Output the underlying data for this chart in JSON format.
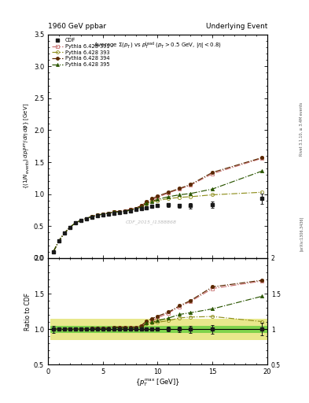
{
  "title_left": "1960 GeV ppbar",
  "title_right": "Underlying Event",
  "plot_title": "Average $\\Sigma(p_T)$ vs $p_T^{\\rm lead}$ ($p_T > 0.5$ GeV, $|\\eta| < 0.8$)",
  "watermark": "CDF_2015_I1388868",
  "right_label": "Rivet 3.1.10, ≥ 3.4M events",
  "arxiv_label": "[arXiv:1306.3436]",
  "xlabel": "$\\{p_T^{\\rm max}$ [GeV]$\\}$",
  "ylabel": "$\\{(1/N_{\\rm events})\\, dp_T^{\\rm sum}/d\\eta\\, d\\phi\\}$ [GeV]",
  "ylabel_ratio": "Ratio to CDF",
  "xlim": [
    0,
    20
  ],
  "ylim_main": [
    0,
    3.5
  ],
  "ylim_ratio": [
    0.5,
    2.0
  ],
  "cdf_x": [
    0.5,
    1.0,
    1.5,
    2.0,
    2.5,
    3.0,
    3.5,
    4.0,
    4.5,
    5.0,
    5.5,
    6.0,
    6.5,
    7.0,
    7.5,
    8.0,
    8.5,
    9.0,
    9.5,
    10.0,
    11.0,
    12.0,
    13.0,
    15.0,
    19.5
  ],
  "cdf_y": [
    0.1,
    0.27,
    0.39,
    0.48,
    0.55,
    0.59,
    0.62,
    0.64,
    0.66,
    0.68,
    0.69,
    0.7,
    0.71,
    0.72,
    0.74,
    0.76,
    0.78,
    0.79,
    0.81,
    0.82,
    0.83,
    0.82,
    0.82,
    0.84,
    0.93
  ],
  "cdf_yerr": [
    0.005,
    0.005,
    0.005,
    0.005,
    0.005,
    0.005,
    0.005,
    0.005,
    0.005,
    0.005,
    0.005,
    0.005,
    0.005,
    0.005,
    0.005,
    0.008,
    0.008,
    0.01,
    0.015,
    0.02,
    0.03,
    0.03,
    0.04,
    0.05,
    0.08
  ],
  "cdf_color": "#1a1a1a",
  "py391_y": [
    0.1,
    0.27,
    0.39,
    0.48,
    0.55,
    0.59,
    0.62,
    0.65,
    0.67,
    0.69,
    0.7,
    0.72,
    0.73,
    0.74,
    0.76,
    0.78,
    0.82,
    0.87,
    0.91,
    0.95,
    1.02,
    1.08,
    1.14,
    1.32,
    1.56
  ],
  "py391_color": "#c87070",
  "py393_y": [
    0.1,
    0.27,
    0.39,
    0.48,
    0.55,
    0.59,
    0.62,
    0.65,
    0.67,
    0.69,
    0.7,
    0.72,
    0.72,
    0.73,
    0.75,
    0.77,
    0.8,
    0.85,
    0.88,
    0.9,
    0.93,
    0.95,
    0.96,
    0.99,
    1.03
  ],
  "py393_color": "#909020",
  "py394_y": [
    0.1,
    0.27,
    0.39,
    0.48,
    0.55,
    0.59,
    0.62,
    0.65,
    0.67,
    0.69,
    0.7,
    0.72,
    0.73,
    0.74,
    0.76,
    0.78,
    0.82,
    0.88,
    0.93,
    0.97,
    1.03,
    1.09,
    1.15,
    1.34,
    1.57
  ],
  "py394_color": "#5a2800",
  "py395_y": [
    0.1,
    0.27,
    0.39,
    0.48,
    0.55,
    0.59,
    0.62,
    0.65,
    0.67,
    0.69,
    0.7,
    0.72,
    0.72,
    0.73,
    0.75,
    0.77,
    0.8,
    0.86,
    0.89,
    0.92,
    0.96,
    0.99,
    1.01,
    1.08,
    1.36
  ],
  "py395_color": "#2a5500",
  "band_inner": 0.05,
  "band_outer": 0.15,
  "band_green_color": "#00bb00",
  "band_yellow_color": "#cccc00",
  "band_green_alpha": 0.45,
  "band_yellow_alpha": 0.45
}
